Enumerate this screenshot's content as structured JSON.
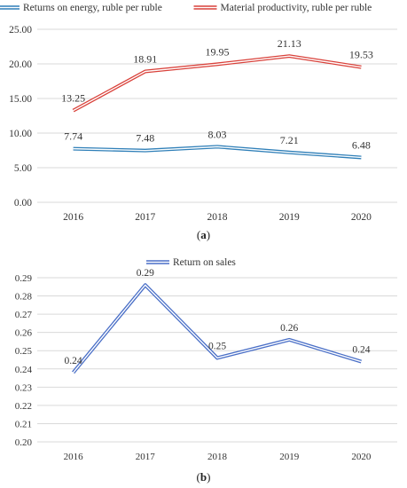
{
  "chart_data": [
    {
      "type": "line",
      "panel_label": "a",
      "categories": [
        "2016",
        "2017",
        "2018",
        "2019",
        "2020"
      ],
      "series": [
        {
          "name": "Returns on energy, ruble per ruble",
          "values": [
            7.74,
            7.48,
            8.03,
            7.21,
            6.48
          ],
          "labels": [
            "7.74",
            "7.48",
            "8.03",
            "7.21",
            "6.48"
          ],
          "color": "#2f7fb8"
        },
        {
          "name": "Material productivity, ruble per ruble",
          "values": [
            13.25,
            18.91,
            19.95,
            21.13,
            19.53
          ],
          "labels": [
            "13.25",
            "18.91",
            "19.95",
            "21.13",
            "19.53"
          ],
          "color": "#d9413a"
        }
      ],
      "ylim": [
        0,
        25
      ],
      "yticks": [
        "0.00",
        "5.00",
        "10.00",
        "15.00",
        "20.00",
        "25.00"
      ],
      "grid": true,
      "legend_position": "top"
    },
    {
      "type": "line",
      "panel_label": "b",
      "categories": [
        "2016",
        "2017",
        "2018",
        "2019",
        "2020"
      ],
      "series": [
        {
          "name": "Return on sales",
          "values": [
            0.238,
            0.286,
            0.246,
            0.256,
            0.244
          ],
          "labels": [
            "0.24",
            "0.29",
            "0.25",
            "0.26",
            "0.24"
          ],
          "color": "#4a6fc7"
        }
      ],
      "ylim": [
        0.2,
        0.29
      ],
      "yticks": [
        "0.20",
        "0.21",
        "0.22",
        "0.23",
        "0.24",
        "0.25",
        "0.26",
        "0.27",
        "0.28",
        "0.29"
      ],
      "grid": true,
      "legend_position": "top"
    }
  ],
  "captions": {
    "a": "a",
    "b": "b"
  }
}
